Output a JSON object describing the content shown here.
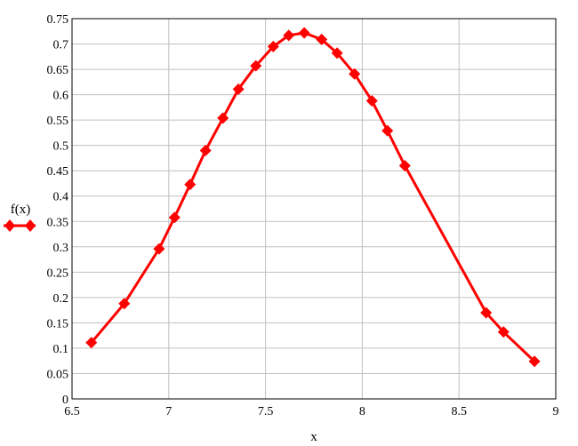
{
  "chart_data": {
    "type": "line",
    "title": "",
    "xlabel": "x",
    "ylabel": "f(x)",
    "xlim": [
      6.5,
      9
    ],
    "ylim": [
      0,
      0.75
    ],
    "x_ticks": [
      "6.5",
      "7",
      "7.5",
      "8",
      "8.5",
      "9"
    ],
    "y_ticks": [
      "0",
      "0.05",
      "0.1",
      "0.15",
      "0.2",
      "0.25",
      "0.3",
      "0.35",
      "0.4",
      "0.45",
      "0.5",
      "0.55",
      "0.6",
      "0.65",
      "0.7",
      "0.75"
    ],
    "grid": true,
    "legend": "left",
    "series": [
      {
        "name": "f(x)",
        "color": "#ff0000",
        "marker": "diamond",
        "x": [
          6.6,
          6.77,
          6.95,
          7.03,
          7.11,
          7.19,
          7.28,
          7.36,
          7.45,
          7.54,
          7.62,
          7.7,
          7.79,
          7.87,
          7.96,
          8.05,
          8.13,
          8.22,
          8.64,
          8.73,
          8.89
        ],
        "y": [
          0.111,
          0.188,
          0.296,
          0.358,
          0.423,
          0.49,
          0.554,
          0.611,
          0.657,
          0.695,
          0.717,
          0.722,
          0.709,
          0.682,
          0.641,
          0.588,
          0.529,
          0.46,
          0.17,
          0.132,
          0.074
        ]
      }
    ]
  }
}
